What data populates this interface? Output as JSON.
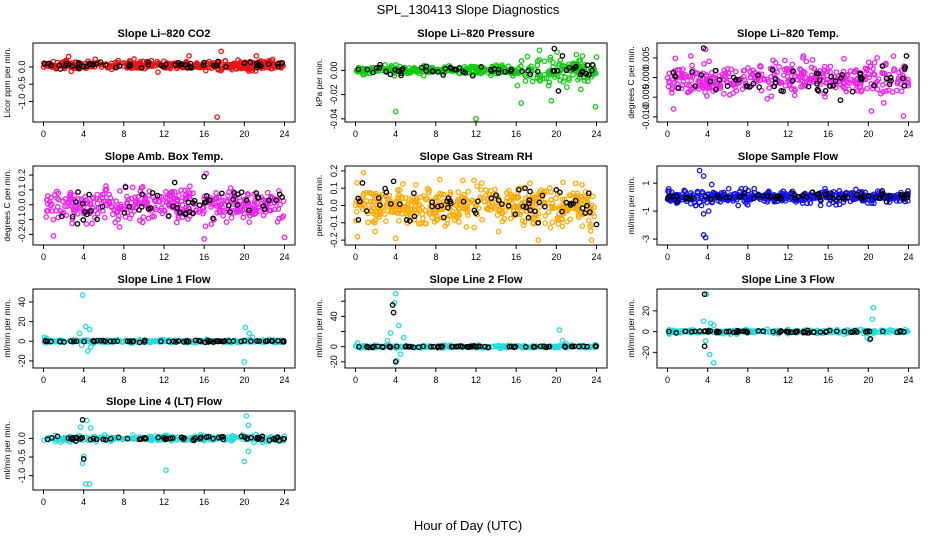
{
  "figure": {
    "title": "SPL_130413  Slope Diagnostics",
    "xlabel": "Hour of Day (UTC)"
  },
  "chart_data": [
    {
      "type": "scatter",
      "title": "Slope Li–820 CO2",
      "ylabel": "Licor ppm per min.",
      "xlim": [
        0,
        24
      ],
      "xticks": [
        0,
        4,
        8,
        12,
        16,
        20,
        24
      ],
      "ylim": [
        -1.5,
        0.6
      ],
      "yticks": [
        0.0,
        -0.5,
        -1.0
      ],
      "ytick_labels": [
        "0.0",
        "-0.5",
        "-1.0"
      ],
      "color": "#ee1111",
      "series": [
        {
          "name": "",
          "band": {
            "center": 0.05,
            "spread": 0.12,
            "count": 380
          },
          "outliers": [
            [
              17.3,
              -1.45
            ],
            [
              17.7,
              0.45
            ],
            [
              2.5,
              0.3
            ],
            [
              14.5,
              0.32
            ],
            [
              21.2,
              0.32
            ],
            [
              11.4,
              -0.15
            ]
          ]
        },
        {
          "name": "",
          "color": "#000000",
          "band": {
            "center": 0.05,
            "spread": 0.1,
            "count": 60
          }
        }
      ]
    },
    {
      "type": "scatter",
      "title": "Slope Li–820 Pressure",
      "ylabel": "kPa per min.",
      "xlim": [
        0,
        24
      ],
      "xticks": [
        0,
        4,
        8,
        12,
        16,
        20,
        24
      ],
      "ylim": [
        -0.04,
        0.02
      ],
      "yticks": [
        0.0,
        -0.02,
        -0.04
      ],
      "ytick_labels": [
        "0.00",
        "-0.02",
        "-0.04"
      ],
      "color": "#11cc11",
      "series": [
        {
          "name": "",
          "band": {
            "center": 0.0,
            "spread": 0.003,
            "count": 380,
            "wide_from": 16,
            "wide_spread": 0.011
          },
          "outliers": [
            [
              4.0,
              -0.034
            ],
            [
              12.0,
              -0.04
            ],
            [
              16.5,
              -0.027
            ],
            [
              19.5,
              -0.025
            ],
            [
              22.0,
              0.013
            ],
            [
              23.9,
              -0.03
            ],
            [
              24.0,
              0.011
            ]
          ]
        },
        {
          "name": "",
          "color": "#000000",
          "band": {
            "center": 0.0,
            "spread": 0.004,
            "count": 60
          },
          "outliers": [
            [
              19.8,
              0.018
            ],
            [
              20.2,
              -0.017
            ],
            [
              20.6,
              0.012
            ]
          ]
        }
      ]
    },
    {
      "type": "scatter",
      "title": "Slope Li–820 Temp.",
      "ylabel": "degrees C per min.",
      "xlim": [
        0,
        24
      ],
      "xticks": [
        0,
        4,
        8,
        12,
        16,
        20,
        24
      ],
      "ylim": [
        -0.0105,
        0.008
      ],
      "yticks": [
        0.005,
        0.0,
        -0.005,
        -0.01
      ],
      "ytick_labels": [
        "0.005",
        "0.000",
        "-0.005",
        "-0.010"
      ],
      "color": "#ee22ee",
      "series": [
        {
          "name": "",
          "band": {
            "center": -0.0005,
            "spread": 0.004,
            "count": 380
          },
          "outliers": [
            [
              0.6,
              -0.008
            ],
            [
              23.5,
              -0.0098
            ],
            [
              3.8,
              0.0072
            ],
            [
              20.3,
              -0.0085
            ]
          ]
        },
        {
          "name": "",
          "color": "#000000",
          "band": {
            "center": -0.0005,
            "spread": 0.0035,
            "count": 60
          },
          "outliers": [
            [
              3.6,
              0.0075
            ],
            [
              23.8,
              0.0055
            ]
          ]
        }
      ]
    },
    {
      "type": "scatter",
      "title": "Slope Amb. Box Temp.",
      "ylabel": "degrees C per min.",
      "xlim": [
        0,
        24
      ],
      "xticks": [
        0,
        4,
        8,
        12,
        16,
        20,
        24
      ],
      "ylim": [
        -0.25,
        0.24
      ],
      "yticks": [
        0.2,
        0.1,
        0.0,
        -0.1,
        -0.2
      ],
      "ytick_labels": [
        "0.2",
        "0.1",
        "0.0",
        "-0.1",
        "-0.2"
      ],
      "color": "#ee22ee",
      "series": [
        {
          "name": "",
          "band": {
            "center": 0.0,
            "spread": 0.1,
            "count": 400
          },
          "outliers": [
            [
              16.0,
              -0.23
            ],
            [
              1.0,
              -0.21
            ],
            [
              24.0,
              -0.22
            ],
            [
              16.2,
              0.21
            ]
          ]
        },
        {
          "name": "",
          "color": "#000000",
          "band": {
            "center": 0.0,
            "spread": 0.1,
            "count": 60
          },
          "outliers": [
            [
              16.0,
              0.19
            ]
          ]
        }
      ]
    },
    {
      "type": "scatter",
      "title": "Slope Gas Stream RH",
      "ylabel": "percent per min.",
      "xlim": [
        0,
        24
      ],
      "xticks": [
        0,
        4,
        8,
        12,
        16,
        20,
        24
      ],
      "ylim": [
        -0.21,
        0.21
      ],
      "yticks": [
        0.2,
        0.1,
        0.0,
        -0.1,
        -0.2
      ],
      "ytick_labels": [
        "0.2",
        "0.1",
        "0.0",
        "-0.1",
        "-0.2"
      ],
      "color": "#ffaa00",
      "series": [
        {
          "name": "",
          "band": {
            "center": 0.0,
            "spread": 0.1,
            "count": 480
          },
          "outliers": [
            [
              0.8,
              0.19
            ],
            [
              0.2,
              -0.18
            ],
            [
              18.2,
              -0.2
            ],
            [
              23.5,
              -0.2
            ],
            [
              4.0,
              -0.19
            ]
          ]
        },
        {
          "name": "",
          "color": "#000000",
          "band": {
            "center": 0.0,
            "spread": 0.09,
            "count": 60
          },
          "outliers": [
            [
              0.7,
              0.13
            ],
            [
              3.8,
              0.14
            ],
            [
              20.0,
              0.09
            ],
            [
              24.0,
              -0.11
            ]
          ]
        }
      ]
    },
    {
      "type": "scatter",
      "title": "Slope Sample Flow",
      "ylabel": "ml/min per min.",
      "xlim": [
        0,
        24
      ],
      "xticks": [
        0,
        4,
        8,
        12,
        16,
        20,
        24
      ],
      "ylim": [
        -3.2,
        2.0
      ],
      "yticks": [
        1,
        -1,
        -3
      ],
      "ytick_labels": [
        "1",
        "-1",
        "-3"
      ],
      "color": "#1111ee",
      "series": [
        {
          "name": "",
          "band": {
            "center": 0.0,
            "spread": 0.4,
            "count": 420
          },
          "outliers": [
            [
              3.2,
              1.9
            ],
            [
              3.6,
              1.5
            ],
            [
              3.8,
              -2.9
            ],
            [
              3.6,
              -2.7
            ],
            [
              3.6,
              -1.2
            ],
            [
              4.1,
              -1.0
            ],
            [
              3.4,
              -0.6
            ],
            [
              4.4,
              0.9
            ],
            [
              2.8,
              -0.6
            ]
          ]
        },
        {
          "name": "",
          "color": "#000000",
          "band": {
            "center": 0.0,
            "spread": 0.3,
            "count": 70
          }
        }
      ]
    },
    {
      "type": "scatter",
      "title": "Slope Line 1 Flow",
      "ylabel": "ml/min per min.",
      "xlim": [
        0,
        24
      ],
      "xticks": [
        0,
        4,
        8,
        12,
        16,
        20,
        24
      ],
      "ylim": [
        -24,
        50
      ],
      "yticks": [
        40,
        20,
        0,
        -20
      ],
      "ytick_labels": [
        "40",
        "20",
        "0",
        "-20"
      ],
      "color": "#22dddd",
      "series": [
        {
          "name": "",
          "band": {
            "center": 0.0,
            "spread": 1.5,
            "count": 220
          },
          "outliers": [
            [
              3.9,
              47
            ],
            [
              4.2,
              15
            ],
            [
              4.6,
              12
            ],
            [
              3.6,
              8
            ],
            [
              4.4,
              -10
            ],
            [
              4.7,
              -6
            ],
            [
              3.8,
              -4
            ],
            [
              20.1,
              14
            ],
            [
              20.5,
              8
            ],
            [
              20.8,
              4
            ],
            [
              20.0,
              -21
            ],
            [
              0.1,
              4
            ],
            [
              0.3,
              3
            ]
          ]
        },
        {
          "name": "",
          "color": "#000000",
          "band": {
            "center": 0.0,
            "spread": 0.8,
            "count": 70
          }
        }
      ]
    },
    {
      "type": "scatter",
      "title": "Slope Line 2 Flow",
      "ylabel": "ml/min per min.",
      "xlim": [
        0,
        24
      ],
      "xticks": [
        0,
        4,
        8,
        12,
        16,
        20,
        24
      ],
      "ylim": [
        -24,
        72
      ],
      "yticks": [
        60,
        40,
        20,
        0,
        -20
      ],
      "ytick_labels": [
        "",
        "40",
        "",
        "0",
        "-20"
      ],
      "color": "#22dddd",
      "series": [
        {
          "name": "",
          "band": {
            "center": 0.0,
            "spread": 1.6,
            "count": 230
          },
          "outliers": [
            [
              4.0,
              70
            ],
            [
              3.9,
              58
            ],
            [
              4.3,
              28
            ],
            [
              3.5,
              18
            ],
            [
              4.8,
              12
            ],
            [
              3.2,
              8
            ],
            [
              4.1,
              -18
            ],
            [
              4.5,
              -10
            ],
            [
              20.3,
              22
            ],
            [
              20.6,
              8
            ],
            [
              21.0,
              4
            ],
            [
              0.2,
              5
            ]
          ]
        },
        {
          "name": "",
          "color": "#000000",
          "band": {
            "center": 0.0,
            "spread": 0.9,
            "count": 70
          },
          "outliers": [
            [
              3.7,
              55
            ],
            [
              3.8,
              45
            ],
            [
              4.0,
              -20
            ]
          ]
        }
      ]
    },
    {
      "type": "scatter",
      "title": "Slope Line 3 Flow",
      "ylabel": "ml/min per min.",
      "xlim": [
        0,
        24
      ],
      "xticks": [
        0,
        4,
        8,
        12,
        16,
        20,
        24
      ],
      "ylim": [
        -32,
        38
      ],
      "yticks": [
        20,
        0,
        -20
      ],
      "ytick_labels": [
        "20",
        "0",
        "-20"
      ],
      "color": "#22dddd",
      "series": [
        {
          "name": "",
          "band": {
            "center": 0.0,
            "spread": 1.6,
            "count": 230
          },
          "outliers": [
            [
              3.9,
              36
            ],
            [
              3.6,
              10
            ],
            [
              4.3,
              8
            ],
            [
              4.6,
              6
            ],
            [
              3.8,
              -9
            ],
            [
              4.2,
              -22
            ],
            [
              4.6,
              -30
            ],
            [
              20.5,
              23
            ],
            [
              20.4,
              12
            ],
            [
              20.1,
              -8
            ],
            [
              19.9,
              -6
            ]
          ]
        },
        {
          "name": "",
          "color": "#000000",
          "band": {
            "center": 0.0,
            "spread": 0.9,
            "count": 70
          },
          "outliers": [
            [
              3.7,
              36
            ],
            [
              3.7,
              -14
            ],
            [
              20.2,
              -7
            ]
          ]
        }
      ]
    },
    {
      "type": "scatter",
      "title": "Slope Line 4 (LT) Flow",
      "ylabel": "ml/min per min.",
      "xlim": [
        0,
        24
      ],
      "xticks": [
        0,
        4,
        8,
        12,
        16,
        20,
        24
      ],
      "ylim": [
        -1.3,
        0.65
      ],
      "yticks": [
        0.0,
        -0.5,
        -1.0
      ],
      "ytick_labels": [
        "0.0",
        "-0.5",
        "-1.0"
      ],
      "color": "#22dddd",
      "series": [
        {
          "name": "",
          "band": {
            "center": 0.0,
            "spread": 0.07,
            "count": 240
          },
          "outliers": [
            [
              4.2,
              -1.22
            ],
            [
              4.6,
              -1.22
            ],
            [
              3.9,
              -0.67
            ],
            [
              4.0,
              -0.48
            ],
            [
              4.3,
              0.48
            ],
            [
              4.7,
              0.28
            ],
            [
              3.7,
              0.3
            ],
            [
              20.2,
              0.6
            ],
            [
              20.4,
              0.35
            ],
            [
              20.0,
              -0.62
            ],
            [
              20.4,
              -0.35
            ],
            [
              12.2,
              -0.85
            ]
          ]
        },
        {
          "name": "",
          "color": "#000000",
          "band": {
            "center": 0.0,
            "spread": 0.05,
            "count": 70
          },
          "outliers": [
            [
              3.9,
              0.5
            ],
            [
              4.0,
              -0.55
            ]
          ]
        }
      ]
    }
  ]
}
